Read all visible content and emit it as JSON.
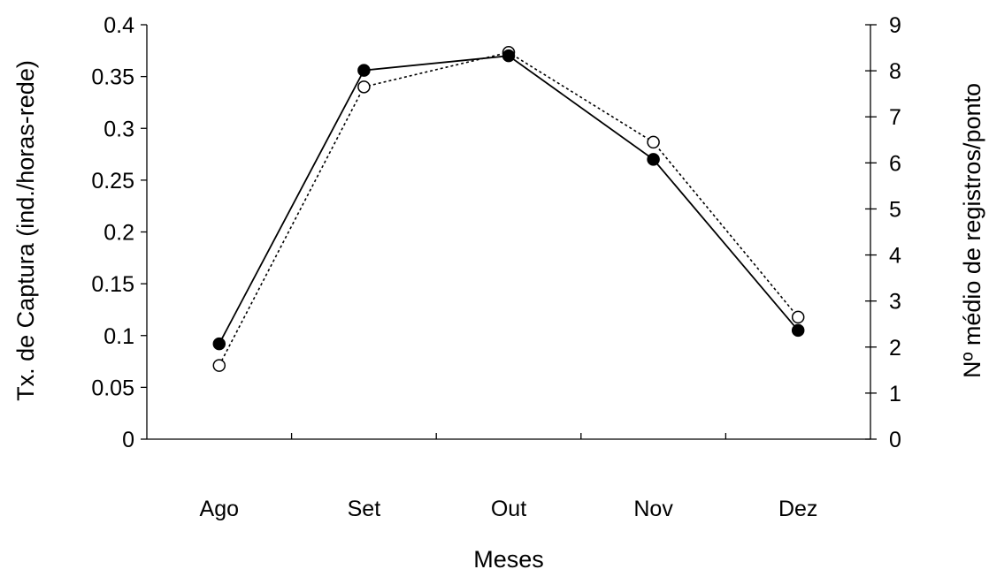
{
  "chart_data": {
    "type": "line",
    "xlabel": "Meses",
    "ylabel": "Tx. de Captura (ind./horas-rede)",
    "y2label": "Nº médio de registros/ponto",
    "categories": [
      "Ago",
      "Set",
      "Out",
      "Nov",
      "Dez"
    ],
    "ylim": [
      0,
      0.4
    ],
    "y_ticks": [
      "0",
      "0.05",
      "0.1",
      "0.15",
      "0.2",
      "0.25",
      "0.3",
      "0.35",
      "0.4"
    ],
    "y2lim": [
      0,
      9
    ],
    "y2_ticks": [
      "0",
      "1",
      "2",
      "3",
      "4",
      "5",
      "6",
      "7",
      "8",
      "9"
    ],
    "grid": false,
    "series": [
      {
        "axis": "left",
        "line_style": "solid",
        "marker": "filled-circle",
        "values": [
          0.092,
          0.356,
          0.37,
          0.27,
          0.105
        ]
      },
      {
        "axis": "right",
        "line_style": "dotted",
        "marker": "open-circle",
        "values": [
          1.6,
          7.65,
          8.4,
          6.45,
          2.65
        ]
      }
    ]
  }
}
